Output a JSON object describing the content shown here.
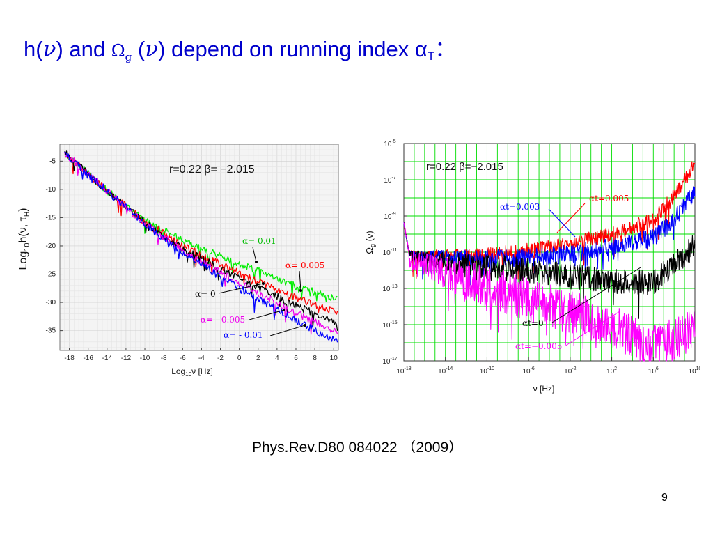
{
  "title": {
    "prefix": "h(",
    "nu1": "ν",
    "mid1": ") and",
    "omega": "Ω",
    "sub_g": "g",
    "paren_open": "(",
    "nu2": "ν",
    "mid2": ") depend on running index α",
    "sub_T": "T",
    "colon": "："
  },
  "citation": "Phys.Rev.D80 084022 （2009）",
  "page_number": "9",
  "chart_data": [
    {
      "type": "line",
      "xlabel": "Log10ν [Hz]",
      "ylabel": "Log10h(ν, τH)",
      "xlim": [
        -19,
        10.5
      ],
      "ylim": [
        -38.5,
        -2
      ],
      "xticks": [
        -18,
        -16,
        -14,
        -12,
        -10,
        -8,
        -6,
        -4,
        -2,
        0,
        2,
        4,
        6,
        8,
        10
      ],
      "yticks": [
        -5,
        -10,
        -15,
        -20,
        -25,
        -30,
        -35
      ],
      "grid": true,
      "parameter_label": "r=0.22    β= −2.015",
      "series": [
        {
          "name": "α= 0.01",
          "color": "#00ee00",
          "x": [
            -18.5,
            -14,
            -10,
            -6,
            -2,
            2,
            6,
            10.5
          ],
          "y": [
            -2.9,
            -9.6,
            -14.8,
            -18.4,
            -21.2,
            -23.8,
            -26.5,
            -28.8
          ]
        },
        {
          "name": "α= 0.005",
          "color": "#ff0000",
          "x": [
            -18.5,
            -14,
            -10,
            -6,
            -2,
            2,
            6,
            10.5
          ],
          "y": [
            -2.9,
            -9.6,
            -15.1,
            -19.3,
            -22.6,
            -25.7,
            -28.6,
            -31.2
          ]
        },
        {
          "name": "α= 0",
          "color": "#000000",
          "x": [
            -18.5,
            -14,
            -10,
            -6,
            -2,
            2,
            6,
            10.5
          ],
          "y": [
            -2.9,
            -9.6,
            -15.2,
            -19.8,
            -23.4,
            -26.7,
            -29.9,
            -33.0
          ]
        },
        {
          "name": "α= - 0.005",
          "color": "#ee00ee",
          "x": [
            -18.5,
            -14,
            -10,
            -6,
            -2,
            2,
            6,
            10.5
          ],
          "y": [
            -2.9,
            -9.6,
            -15.4,
            -20.2,
            -24.1,
            -27.7,
            -31.2,
            -34.8
          ]
        },
        {
          "name": "α= - 0.01",
          "color": "#0000ff",
          "x": [
            -18.5,
            -14,
            -10,
            -6,
            -2,
            2,
            6,
            10.5
          ],
          "y": [
            -2.9,
            -9.6,
            -15.5,
            -20.6,
            -24.8,
            -28.7,
            -32.5,
            -36.5
          ]
        }
      ]
    },
    {
      "type": "line",
      "xlabel": "ν [Hz]",
      "ylabel": "Ωg (ν)",
      "xscale": "log",
      "yscale": "log",
      "xlim_exp": [
        -18,
        10
      ],
      "ylim_exp": [
        -17,
        -5
      ],
      "xticks_exp": [
        -18,
        -14,
        -10,
        -6,
        -2,
        2,
        6,
        10
      ],
      "yticks_exp": [
        -5,
        -7,
        -9,
        -11,
        -13,
        -15,
        -17
      ],
      "grid": true,
      "grid_color": "#00dd00",
      "parameter_label": "r=0.22    β=−2.015",
      "series": [
        {
          "name": "αt=0.005",
          "color": "#ff0000",
          "x_exp": [
            -18,
            -17.5,
            -16,
            -14,
            -10,
            -6,
            -2,
            2,
            6,
            8,
            10
          ],
          "y_exp": [
            -9.2,
            -10.9,
            -10.9,
            -10.85,
            -10.75,
            -10.5,
            -10.1,
            -9.6,
            -8.8,
            -7.5,
            -5.7
          ]
        },
        {
          "name": "αt=0.003",
          "color": "#0000ff",
          "x_exp": [
            -18,
            -17.5,
            -16,
            -14,
            -10,
            -6,
            -2,
            2,
            6,
            8,
            10
          ],
          "y_exp": [
            -9.2,
            -10.9,
            -10.9,
            -10.9,
            -10.85,
            -10.8,
            -10.6,
            -10.2,
            -9.7,
            -8.7,
            -7.1
          ]
        },
        {
          "name": "αt=0",
          "color": "#000000",
          "x_exp": [
            -18,
            -17.5,
            -16,
            -14,
            -10,
            -6,
            -2,
            2,
            6,
            8,
            10
          ],
          "y_exp": [
            -9.2,
            -10.9,
            -10.95,
            -11.0,
            -11.1,
            -11.3,
            -11.6,
            -11.9,
            -12.0,
            -11.0,
            -9.9
          ]
        },
        {
          "name": "αt=−0.005",
          "color": "#ff00ff",
          "x_exp": [
            -18,
            -17.5,
            -16,
            -14,
            -10,
            -6,
            -2,
            2,
            6,
            8,
            10
          ],
          "y_exp": [
            -9.2,
            -10.9,
            -11.0,
            -11.2,
            -11.7,
            -12.4,
            -13.1,
            -13.9,
            -15.0,
            -14.6,
            -14.1
          ]
        }
      ]
    }
  ]
}
